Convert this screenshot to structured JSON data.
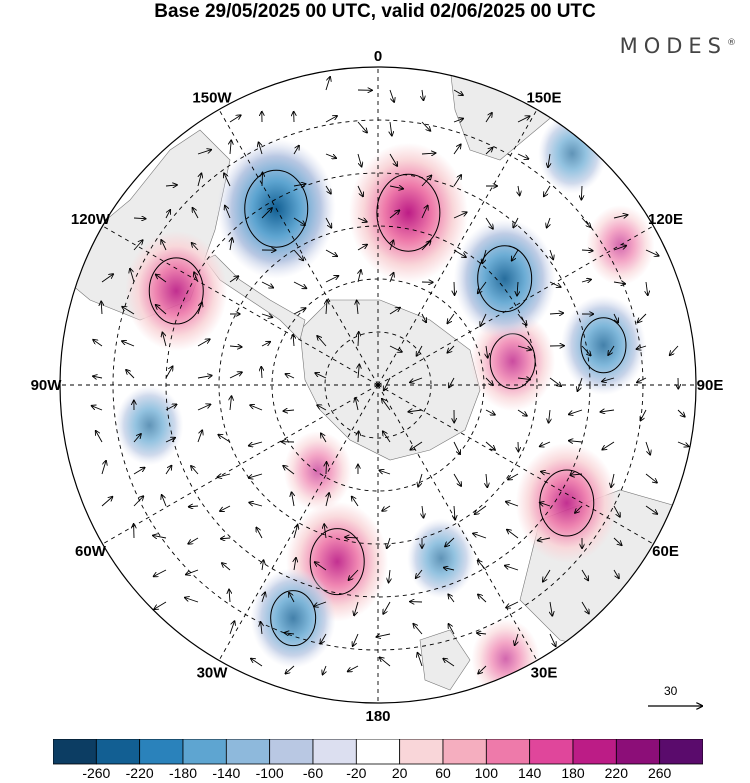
{
  "title": "Base 29/05/2025 00 UTC, valid 02/06/2025 00 UTC",
  "brand": "MODES",
  "brand_mark": "®",
  "longitude_labels": [
    {
      "text": "0",
      "lon": 0
    },
    {
      "text": "30E",
      "lon": 30
    },
    {
      "text": "60E",
      "lon": 60
    },
    {
      "text": "90E",
      "lon": 90
    },
    {
      "text": "120E",
      "lon": 120
    },
    {
      "text": "150E",
      "lon": 150
    },
    {
      "text": "180",
      "lon": 180
    },
    {
      "text": "150W",
      "lon": 210
    },
    {
      "text": "120W",
      "lon": 240
    },
    {
      "text": "90W",
      "lon": 270
    },
    {
      "text": "60W",
      "lon": 300
    },
    {
      "text": "30W",
      "lon": 330
    }
  ],
  "vector_scale_label": "30",
  "colorbar": {
    "ticks": [
      "-260",
      "-220",
      "-180",
      "-140",
      "-100",
      "-60",
      "-20",
      "20",
      "60",
      "100",
      "140",
      "180",
      "220",
      "260"
    ],
    "colors": [
      "#0c3d63",
      "#125f93",
      "#2a82bb",
      "#5ea5d1",
      "#8eb9dc",
      "#b9c8e3",
      "#dcdff0",
      "#ffffff",
      "#f9d6d9",
      "#f5aebf",
      "#ee7aaa",
      "#e0469b",
      "#bc1c86",
      "#8c0e78",
      "#5a0b6c"
    ]
  },
  "anomaly_centers": [
    {
      "lon": 347,
      "colat": 0.57,
      "level": 3
    },
    {
      "lon": 340,
      "colat": 0.78,
      "level": -2
    },
    {
      "lon": 20,
      "colat": 0.58,
      "level": -1
    },
    {
      "lon": 58,
      "colat": 0.7,
      "level": 3
    },
    {
      "lon": 100,
      "colat": 0.43,
      "level": 2
    },
    {
      "lon": 100,
      "colat": 0.72,
      "level": -2
    },
    {
      "lon": 130,
      "colat": 0.52,
      "level": -3
    },
    {
      "lon": 170,
      "colat": 0.55,
      "level": 4
    },
    {
      "lon": 210,
      "colat": 0.64,
      "level": -4
    },
    {
      "lon": 245,
      "colat": 0.7,
      "level": 3
    },
    {
      "lon": 280,
      "colat": 0.73,
      "level": -1
    },
    {
      "lon": 325,
      "colat": 0.33,
      "level": 1
    },
    {
      "lon": 140,
      "colat": 0.95,
      "level": -1
    },
    {
      "lon": 25,
      "colat": 0.95,
      "level": 1
    },
    {
      "lon": 120,
      "colat": 0.88,
      "level": 1
    }
  ]
}
